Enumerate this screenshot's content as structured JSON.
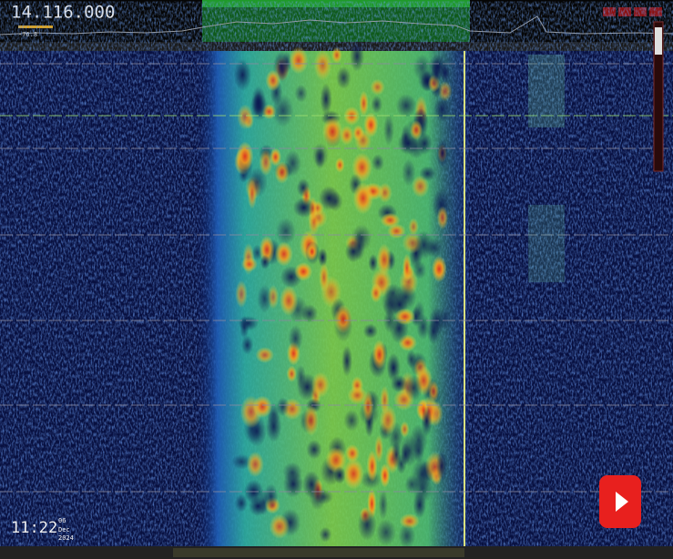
{
  "header": {
    "frequency": "14.116.000",
    "level": "-76.8"
  },
  "clock": {
    "time": "11:22",
    "day": "06",
    "month": "Dec",
    "year": "2024"
  }
}
